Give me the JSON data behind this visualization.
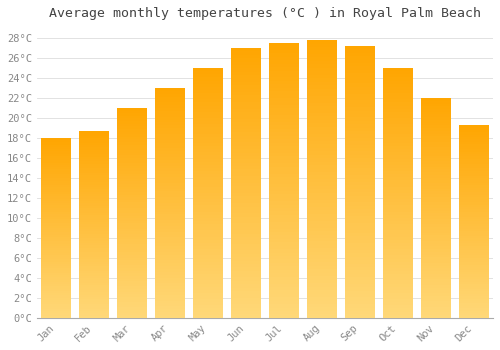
{
  "title": "Average monthly temperatures (°C ) in Royal Palm Beach",
  "months": [
    "Jan",
    "Feb",
    "Mar",
    "Apr",
    "May",
    "Jun",
    "Jul",
    "Aug",
    "Sep",
    "Oct",
    "Nov",
    "Dec"
  ],
  "temperatures": [
    18.0,
    18.7,
    21.0,
    23.0,
    25.0,
    27.0,
    27.5,
    27.8,
    27.2,
    25.0,
    22.0,
    19.3
  ],
  "bar_color_top": "#FFA500",
  "bar_color_bottom": "#FFD878",
  "ytick_step": 2,
  "ymin": 0,
  "ymax": 29,
  "background_color": "#ffffff",
  "grid_color": "#dddddd",
  "title_fontsize": 9.5,
  "tick_fontsize": 7.5,
  "font_family": "monospace",
  "title_color": "#444444",
  "tick_color": "#888888"
}
